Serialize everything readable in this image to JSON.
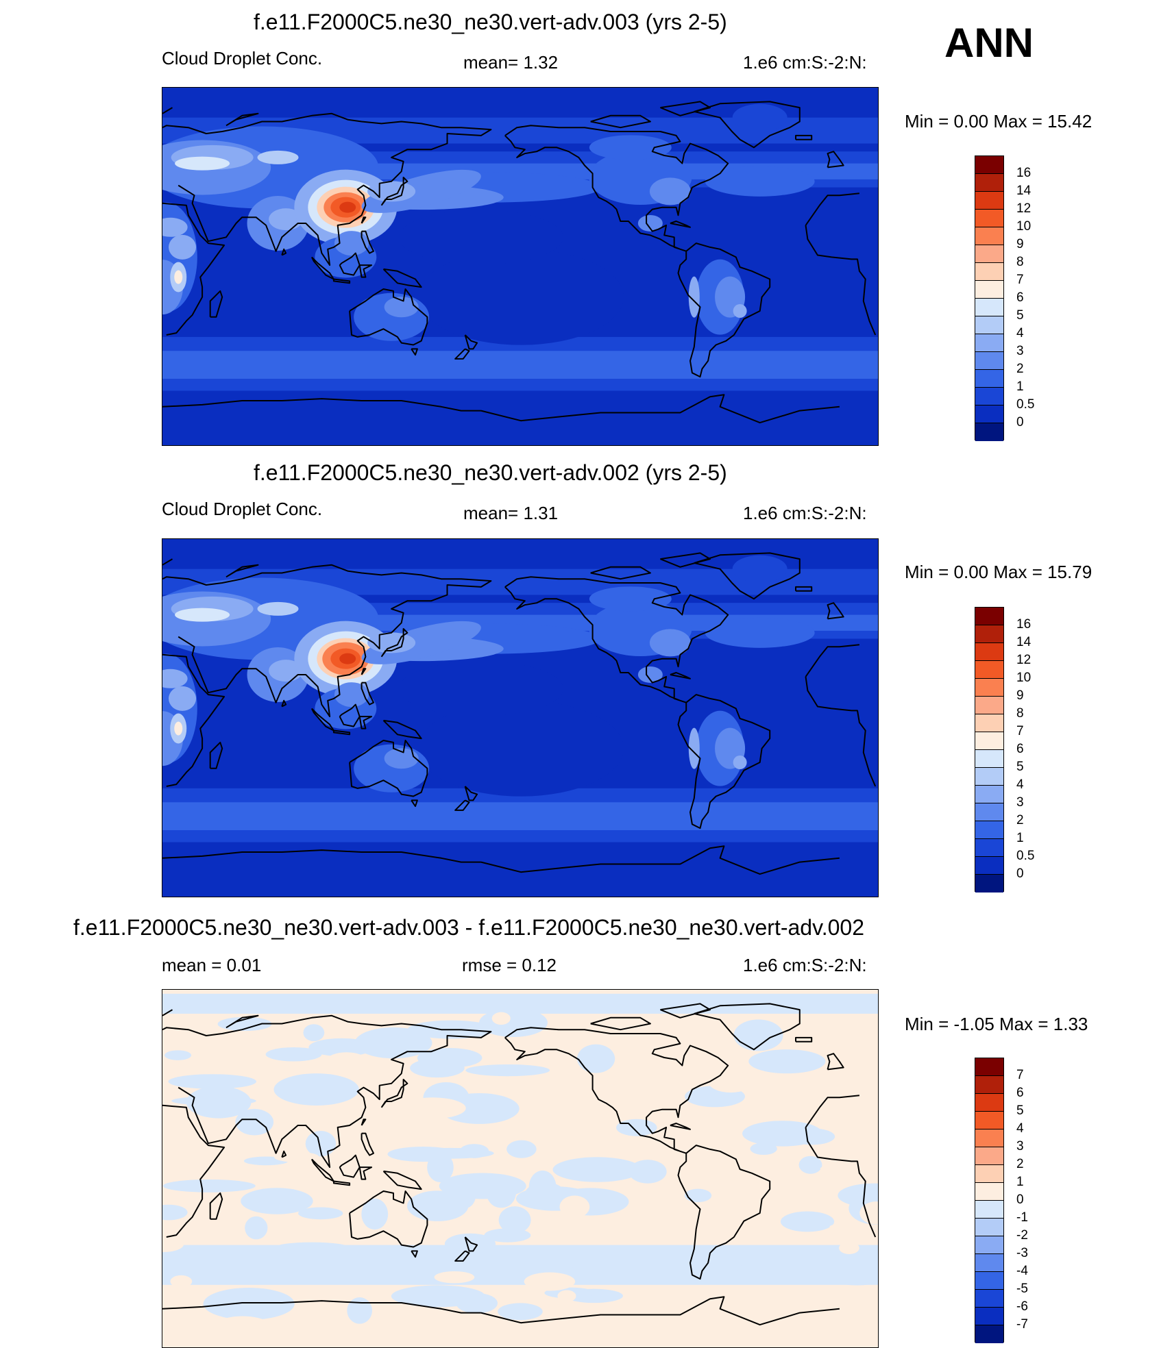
{
  "season": "ANN",
  "panels": [
    {
      "title": "f.e11.F2000C5.ne30_ne30.vert-adv.003 (yrs 2-5)",
      "left_label": "Cloud Droplet Conc.",
      "center_label": "mean=   1.32",
      "right_label": "1.e6 cm:S:-2:N:",
      "minmax": "Min =    0.00 Max =  15.42",
      "colorbar": {
        "labels": [
          "16",
          "14",
          "12",
          "10",
          "9",
          "8",
          "7",
          "6",
          "5",
          "4",
          "3",
          "2",
          "1",
          "0.5",
          "0"
        ],
        "colors": [
          "#7a0000",
          "#b0200a",
          "#dc3a12",
          "#f25a26",
          "#fa8050",
          "#fba989",
          "#fdd0b4",
          "#fdeee0",
          "#d6e7fb",
          "#b3ccf7",
          "#8aabf3",
          "#5f89ee",
          "#3465e6",
          "#1a46d6",
          "#0a2ec0",
          "#00157f"
        ]
      },
      "field": "cloud_droplet_conc",
      "variant": "a"
    },
    {
      "title": "f.e11.F2000C5.ne30_ne30.vert-adv.002 (yrs 2-5)",
      "left_label": "Cloud Droplet Conc.",
      "center_label": "mean=   1.31",
      "right_label": "1.e6 cm:S:-2:N:",
      "minmax": "Min =    0.00 Max =  15.79",
      "colorbar": {
        "labels": [
          "16",
          "14",
          "12",
          "10",
          "9",
          "8",
          "7",
          "6",
          "5",
          "4",
          "3",
          "2",
          "1",
          "0.5",
          "0"
        ],
        "colors": [
          "#7a0000",
          "#b0200a",
          "#dc3a12",
          "#f25a26",
          "#fa8050",
          "#fba989",
          "#fdd0b4",
          "#fdeee0",
          "#d6e7fb",
          "#b3ccf7",
          "#8aabf3",
          "#5f89ee",
          "#3465e6",
          "#1a46d6",
          "#0a2ec0",
          "#00157f"
        ]
      },
      "field": "cloud_droplet_conc",
      "variant": "b"
    },
    {
      "title": "f.e11.F2000C5.ne30_ne30.vert-adv.003 - f.e11.F2000C5.ne30_ne30.vert-adv.002",
      "left_label": "mean =    0.01",
      "center_label": "rmse =    0.12",
      "right_label": "1.e6 cm:S:-2:N:",
      "minmax": "Min =  -1.05 Max =    1.33",
      "colorbar": {
        "labels": [
          "7",
          "6",
          "5",
          "4",
          "3",
          "2",
          "1",
          "0",
          "-1",
          "-2",
          "-3",
          "-4",
          "-5",
          "-6",
          "-7"
        ],
        "colors": [
          "#7a0000",
          "#b0200a",
          "#dc3a12",
          "#f25a26",
          "#fa8050",
          "#fba989",
          "#fdd0b4",
          "#fdeee0",
          "#d6e7fb",
          "#b3ccf7",
          "#8aabf3",
          "#5f89ee",
          "#3465e6",
          "#1a46d6",
          "#0a2ec0",
          "#00157f"
        ]
      },
      "field": "difference",
      "variant": "d"
    }
  ],
  "chart_data": [
    {
      "type": "heatmap",
      "title": "f.e11.F2000C5.ne30_ne30.vert-adv.003 (yrs 2-5)",
      "variable": "Cloud Droplet Conc.",
      "units": "1.e6 cm:S:-2:N:",
      "mean": 1.32,
      "min": 0.0,
      "max": 15.42,
      "levels": [
        0,
        0.5,
        1,
        2,
        3,
        4,
        5,
        6,
        7,
        8,
        9,
        10,
        12,
        14,
        16
      ],
      "season": "ANN"
    },
    {
      "type": "heatmap",
      "title": "f.e11.F2000C5.ne30_ne30.vert-adv.002 (yrs 2-5)",
      "variable": "Cloud Droplet Conc.",
      "units": "1.e6 cm:S:-2:N:",
      "mean": 1.31,
      "min": 0.0,
      "max": 15.79,
      "levels": [
        0,
        0.5,
        1,
        2,
        3,
        4,
        5,
        6,
        7,
        8,
        9,
        10,
        12,
        14,
        16
      ],
      "season": "ANN"
    },
    {
      "type": "heatmap",
      "title": "f.e11.F2000C5.ne30_ne30.vert-adv.003 - f.e11.F2000C5.ne30_ne30.vert-adv.002",
      "units": "1.e6 cm:S:-2:N:",
      "mean": 0.01,
      "rmse": 0.12,
      "min": -1.05,
      "max": 1.33,
      "levels": [
        -7,
        -6,
        -5,
        -4,
        -3,
        -2,
        -1,
        0,
        1,
        2,
        3,
        4,
        5,
        6,
        7
      ],
      "season": "ANN"
    }
  ]
}
